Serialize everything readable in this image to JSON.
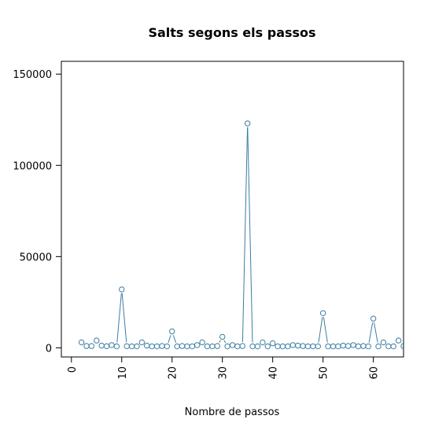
{
  "chart_data": {
    "type": "line",
    "title": "Salts segons els passos",
    "xlabel": "Nombre de passos",
    "ylabel": "",
    "xlim": [
      -2,
      66
    ],
    "ylim": [
      -5000,
      157000
    ],
    "xticks": [
      0,
      10,
      20,
      30,
      40,
      50,
      60
    ],
    "yticks": [
      0,
      50000,
      100000,
      150000
    ],
    "series": [
      {
        "color": "#3b7ea1",
        "x": [
          2,
          3,
          4,
          5,
          6,
          7,
          8,
          9,
          10,
          11,
          12,
          13,
          14,
          15,
          16,
          17,
          18,
          19,
          20,
          21,
          22,
          23,
          24,
          25,
          26,
          27,
          28,
          29,
          30,
          31,
          32,
          33,
          34,
          35,
          36,
          37,
          38,
          39,
          40,
          41,
          42,
          43,
          44,
          45,
          46,
          47,
          48,
          49,
          50,
          51,
          52,
          53,
          54,
          55,
          56,
          57,
          58,
          59,
          60,
          61,
          62,
          63,
          64,
          65,
          66
        ],
        "y": [
          3000,
          1000,
          1000,
          4000,
          1200,
          900,
          1500,
          800,
          32000,
          900,
          800,
          800,
          3000,
          1200,
          800,
          800,
          1000,
          800,
          9000,
          800,
          1000,
          800,
          800,
          1500,
          3000,
          800,
          800,
          1000,
          6000,
          800,
          1500,
          800,
          1000,
          123000,
          800,
          800,
          3000,
          800,
          2500,
          800,
          800,
          800,
          1500,
          1200,
          1000,
          800,
          800,
          800,
          19000,
          800,
          800,
          800,
          1200,
          1000,
          1500,
          800,
          1000,
          800,
          16000,
          800,
          3000,
          800,
          800,
          4000,
          1000
        ]
      }
    ]
  }
}
